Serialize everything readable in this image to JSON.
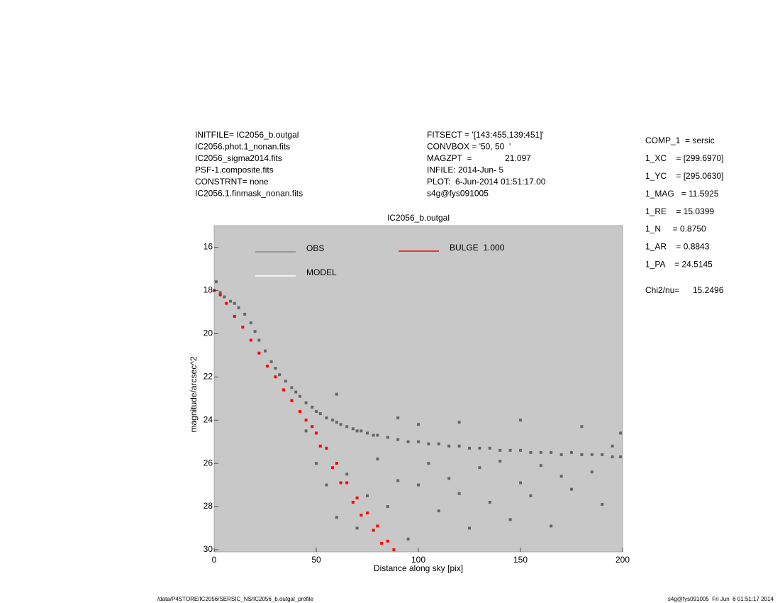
{
  "chart_data": {
    "type": "scatter",
    "header_left": [
      "INITFILE= IC2056_b.outgal",
      "IC2056.phot.1_nonan.fits",
      "IC2056_sigma2014.fits",
      "PSF-1.composite.fits",
      "CONSTRNT= none",
      "IC2056.1.finmask_nonan.fits"
    ],
    "header_middle": [
      "FITSECT = '[143:455,139:451]'",
      "CONVBOX = '50, 50  '",
      "MAGZPT  =              21.097",
      "INFILE: 2014-Jun- 5",
      "PLOT:  6-Jun-2014 01:51:17.00",
      "s4g@fys091005"
    ],
    "parameters": [
      "COMP_1  = sersic",
      "1_XC    = [299.6970]",
      "1_YC    = [295.0630]",
      "1_MAG   = 11.5925",
      "1_RE    = 15.0399",
      "1_N     = 0.8750",
      "1_AR    = 0.8843",
      "1_PA    = 24.5145"
    ],
    "chi2_label": "Chi2/nu=",
    "chi2_value": "15.2496",
    "title": "IC2056_b.outgal",
    "x_label": "Distance along sky [pix]",
    "y_label": "magnitude/arcsec^2",
    "footer_left": "/data/P4STORE/IC2056/SERSIC_NS/IC2056_b.outgal_profile",
    "footer_right": "s4g@fys091005  Fri Jun  6 01:51:17 2014",
    "xlim": [
      0,
      200
    ],
    "ylim": [
      30.1,
      15
    ],
    "xticks": [
      0,
      50,
      100,
      150,
      200
    ],
    "yticks": [
      16,
      18,
      20,
      22,
      24,
      26,
      28,
      30
    ],
    "background": "#c8c8c8",
    "series": [
      {
        "name": "OBS",
        "color": "#666666",
        "x": [
          1,
          3,
          5,
          8,
          10,
          12,
          15,
          18,
          20,
          22,
          25,
          28,
          30,
          32,
          35,
          38,
          40,
          42,
          45,
          48,
          50,
          52,
          55,
          58,
          60,
          62,
          65,
          68,
          70,
          72,
          75,
          78,
          80,
          85,
          90,
          95,
          100,
          105,
          110,
          115,
          120,
          125,
          130,
          135,
          140,
          145,
          150,
          155,
          160,
          165,
          170,
          175,
          180,
          185,
          190,
          195,
          199,
          45,
          50,
          55,
          60,
          65,
          70,
          75,
          80,
          85,
          90,
          95,
          100,
          105,
          110,
          115,
          120,
          125,
          130,
          135,
          140,
          145,
          150,
          155,
          160,
          165,
          170,
          175,
          180,
          185,
          190,
          195,
          199,
          60,
          90,
          120,
          150,
          100
        ],
        "values": [
          17.6,
          18.1,
          18.3,
          18.5,
          18.6,
          18.8,
          19.1,
          19.5,
          19.9,
          20.3,
          20.8,
          21.3,
          21.6,
          21.9,
          22.2,
          22.5,
          22.7,
          22.9,
          23.2,
          23.4,
          23.6,
          23.7,
          23.9,
          24.0,
          24.1,
          24.2,
          24.3,
          24.4,
          24.5,
          24.5,
          24.6,
          24.7,
          24.7,
          24.8,
          24.9,
          25.0,
          25.0,
          25.1,
          25.1,
          25.2,
          25.2,
          25.3,
          25.3,
          25.3,
          25.4,
          25.4,
          25.4,
          25.5,
          25.5,
          25.5,
          25.6,
          25.5,
          25.6,
          25.6,
          25.6,
          25.7,
          25.7,
          24.5,
          26,
          27,
          28.5,
          26.5,
          29,
          27.5,
          25.8,
          28,
          26.8,
          29.5,
          27,
          26,
          28.2,
          26.7,
          27.4,
          29,
          26.2,
          27.8,
          25.9,
          28.6,
          26.9,
          27.5,
          26.1,
          28.9,
          26.6,
          27.2,
          24.3,
          26.4,
          27.9,
          25.2,
          24.6,
          22.8,
          23.9,
          24.1,
          24.0,
          24.2
        ]
      },
      {
        "name": "MODEL",
        "color": "#ffffff",
        "x": [],
        "values": []
      },
      {
        "name": "BULGE  1.000",
        "color": "#ff0000",
        "x": [
          0,
          3,
          6,
          10,
          14,
          18,
          22,
          26,
          30,
          34,
          38,
          42,
          45,
          48,
          50,
          52,
          55,
          58,
          60,
          62,
          65,
          68,
          70,
          72,
          75,
          78,
          80,
          82,
          85,
          88
        ],
        "values": [
          18,
          18.2,
          18.6,
          19.2,
          19.7,
          20.3,
          20.9,
          21.5,
          22.0,
          22.6,
          23.1,
          23.6,
          24.0,
          24.3,
          24.6,
          25.2,
          25.3,
          26.2,
          26.0,
          26.9,
          26.9,
          27.8,
          27.6,
          28.4,
          28.3,
          29.1,
          28.9,
          29.7,
          29.6,
          30.0
        ]
      }
    ]
  }
}
